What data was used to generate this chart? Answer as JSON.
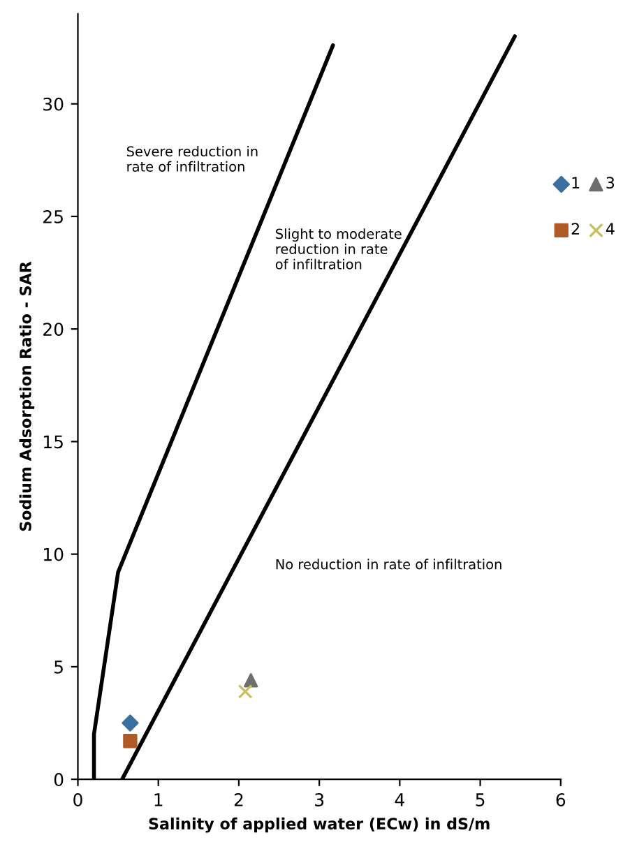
{
  "chart_data": {
    "type": "scatter",
    "xlabel": "Salinity of applied water (ECw) in dS/m",
    "ylabel": "Sodium Adsorption Ratio - SAR",
    "xlim": [
      0,
      6
    ],
    "ylim": [
      0,
      34
    ],
    "xticks": [
      0,
      1,
      2,
      3,
      4,
      5,
      6
    ],
    "yticks": [
      0,
      5,
      10,
      15,
      20,
      25,
      30
    ],
    "grid": false,
    "legend": "right",
    "annotations": [
      "Severe reduction in\nrate of infiltration",
      "Slight to moderate\nreduction in rate\nof infiltration",
      "No reduction in rate of infiltration"
    ],
    "series": [
      {
        "type": "line",
        "color": "#000000",
        "x": [
          0.2,
          0.2,
          0.5,
          3.17
        ],
        "values": [
          0,
          2,
          9.2,
          32.6
        ],
        "marker": "none"
      },
      {
        "type": "line",
        "color": "#000000",
        "x": [
          0.55,
          5.43
        ],
        "values": [
          0,
          33
        ],
        "marker": "none"
      },
      {
        "name": "1",
        "color": "#3a6fa0",
        "marker": "diamond",
        "x": [
          0.65
        ],
        "values": [
          2.5
        ]
      },
      {
        "name": "2",
        "color": "#b05a28",
        "marker": "square",
        "x": [
          0.65
        ],
        "values": [
          1.7
        ]
      },
      {
        "name": "3",
        "color": "#6e6e6e",
        "marker": "triangle",
        "x": [
          2.15
        ],
        "values": [
          4.4
        ]
      },
      {
        "name": "4",
        "color": "#c8c060",
        "marker": "cross",
        "x": [
          2.08
        ],
        "values": [
          3.9
        ]
      }
    ]
  }
}
